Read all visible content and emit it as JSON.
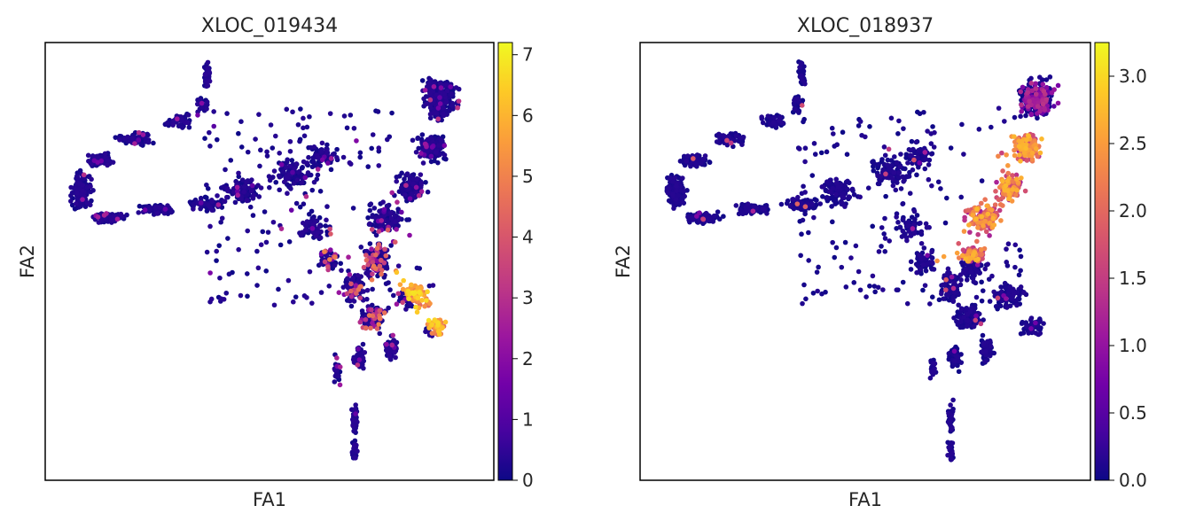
{
  "figure": {
    "panels": [
      {
        "title": "XLOC_019434",
        "xlabel": "FA1",
        "ylabel": "FA2",
        "colorbar": {
          "ticks": [
            "0",
            "1",
            "2",
            "3",
            "4",
            "5",
            "6",
            "7"
          ]
        }
      },
      {
        "title": "XLOC_018937",
        "xlabel": "FA1",
        "ylabel": "FA2",
        "colorbar": {
          "ticks": [
            "0.0",
            "0.5",
            "1.0",
            "1.5",
            "2.0",
            "2.5",
            "3.0"
          ]
        }
      }
    ]
  },
  "colors": {
    "colormap": "plasma",
    "frame": "#000000",
    "text": "#262626",
    "stops": [
      "#0d0887",
      "#46039f",
      "#7201a8",
      "#9c179e",
      "#bd3786",
      "#d8576b",
      "#ed7953",
      "#fb9f3a",
      "#fdca26",
      "#f0f921"
    ]
  },
  "chart_data": [
    {
      "type": "scatter",
      "title": "XLOC_019434",
      "xlabel": "FA1",
      "ylabel": "FA2",
      "colorbar_range": [
        0,
        7.2
      ],
      "colorbar_ticks": [
        0,
        1,
        2,
        3,
        4,
        5,
        6,
        7
      ],
      "xticks": [],
      "yticks": [],
      "grid": false,
      "description_of_expression": "high expression (5-7) along lower-right arm; moderate (2-4) near central junction",
      "clusters": [
        {
          "region": "lower-right arm",
          "value_range": [
            4.5,
            7.0
          ]
        },
        {
          "region": "central junction",
          "value_range": [
            2.0,
            4.5
          ]
        },
        {
          "region": "rest of manifold",
          "value_range": [
            0.0,
            0.5
          ]
        }
      ]
    },
    {
      "type": "scatter",
      "title": "XLOC_018937",
      "xlabel": "FA1",
      "ylabel": "FA2",
      "colorbar_range": [
        0,
        3.25
      ],
      "colorbar_ticks": [
        0.0,
        0.5,
        1.0,
        1.5,
        2.0,
        2.5,
        3.0
      ],
      "xticks": [],
      "yticks": [],
      "grid": false,
      "description_of_expression": "high expression (1.5-2.8) along inner edge of upper-right lobe; rest near 0",
      "clusters": [
        {
          "region": "upper-right lobe inner edge",
          "value_range": [
            1.5,
            2.8
          ]
        },
        {
          "region": "upper-right lobe",
          "value_range": [
            0.5,
            1.5
          ]
        },
        {
          "region": "rest of manifold",
          "value_range": [
            0.0,
            0.3
          ]
        }
      ]
    }
  ]
}
